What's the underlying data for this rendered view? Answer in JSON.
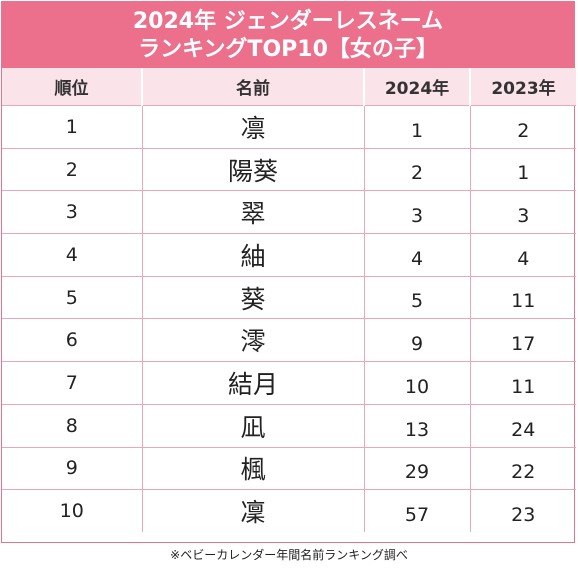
{
  "title": {
    "line1": "2024年 ジェンダーレスネーム",
    "line2": "ランキングTOP10【女の子】"
  },
  "headers": [
    "順位",
    "名前",
    "2024年",
    "2023年"
  ],
  "rows": [
    {
      "rank": "1",
      "name": "凛",
      "y2024": "1",
      "y2023": "2"
    },
    {
      "rank": "2",
      "name": "陽葵",
      "y2024": "2",
      "y2023": "1"
    },
    {
      "rank": "3",
      "name": "翠",
      "y2024": "3",
      "y2023": "3"
    },
    {
      "rank": "4",
      "name": "紬",
      "y2024": "4",
      "y2023": "4"
    },
    {
      "rank": "5",
      "name": "葵",
      "y2024": "5",
      "y2023": "11"
    },
    {
      "rank": "6",
      "name": "澪",
      "y2024": "9",
      "y2023": "17"
    },
    {
      "rank": "7",
      "name": "結月",
      "y2024": "10",
      "y2023": "11"
    },
    {
      "rank": "8",
      "name": "凪",
      "y2024": "13",
      "y2023": "24"
    },
    {
      "rank": "9",
      "name": "楓",
      "y2024": "29",
      "y2023": "22"
    },
    {
      "rank": "10",
      "name": "凜",
      "y2024": "57",
      "y2023": "23"
    }
  ],
  "source": "※ベビーカレンダー年間名前ランキング調べ",
  "colors": {
    "title_bg": "#ec6f8c",
    "header_bg": "#fbe3ea",
    "border": "#e8a8b8"
  }
}
